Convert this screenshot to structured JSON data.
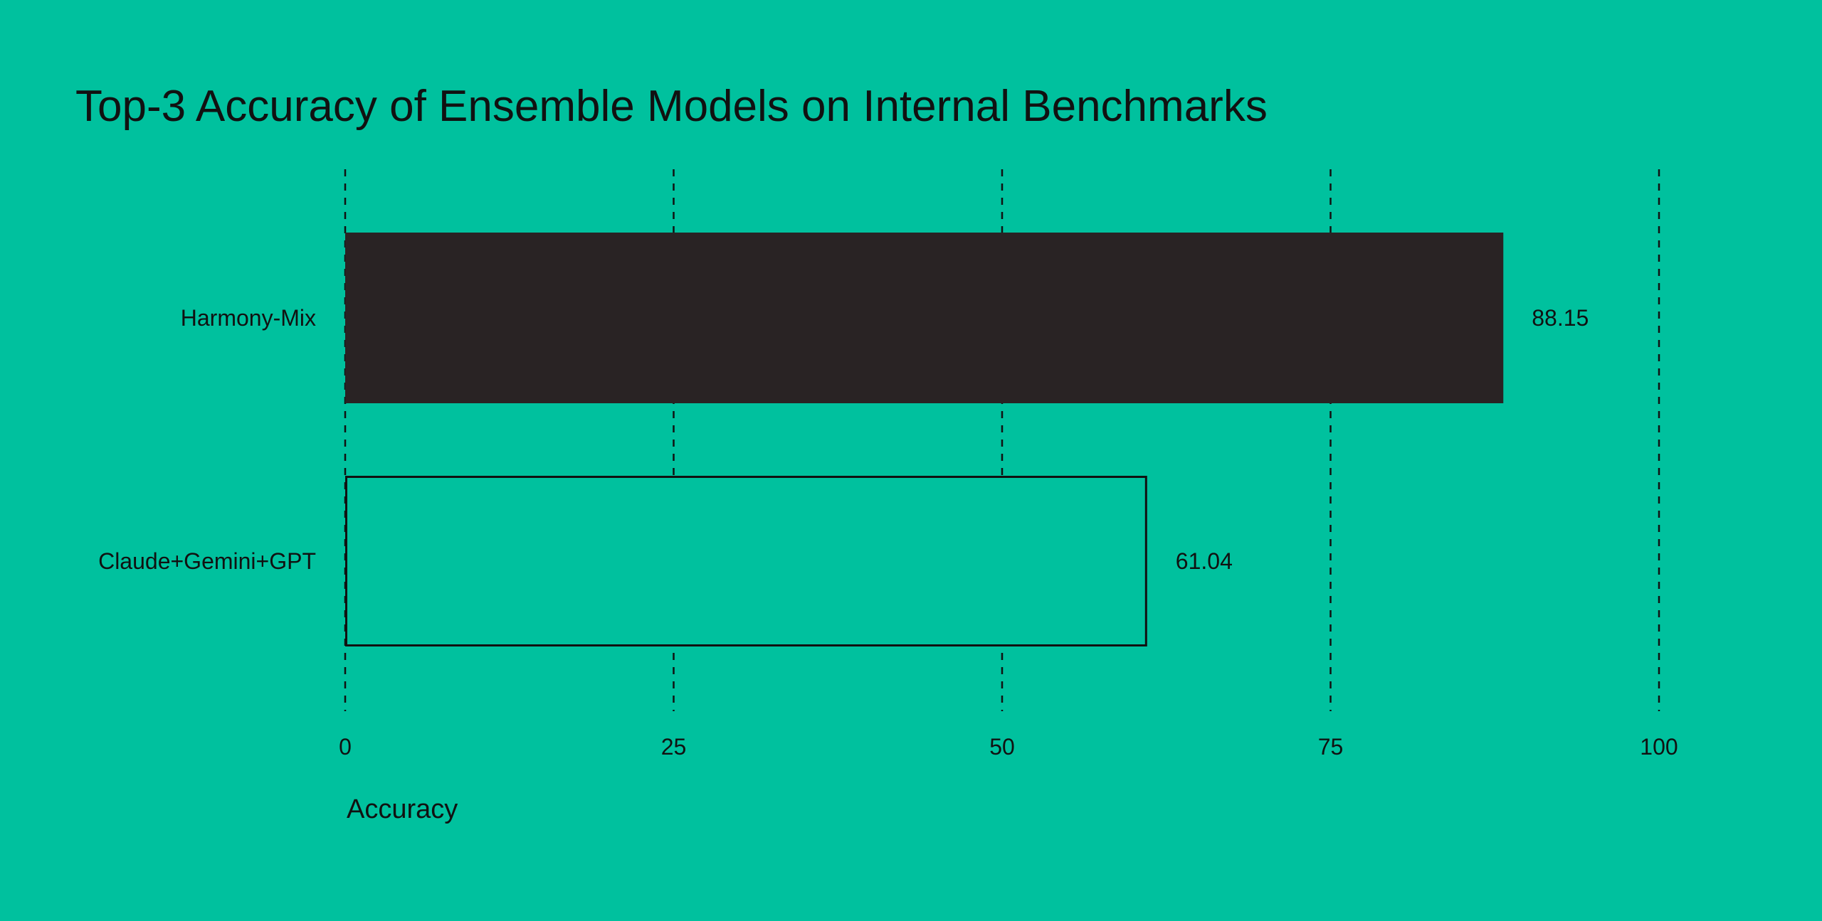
{
  "chart_data": {
    "type": "bar",
    "orientation": "horizontal",
    "title": "Top-3 Accuracy of Ensemble Models on Internal Benchmarks",
    "xlabel": "Accuracy",
    "ylabel": "",
    "categories": [
      "Harmony-Mix",
      "Claude+Gemini+GPT"
    ],
    "values": [
      88.15,
      61.04
    ],
    "value_labels": [
      "88.15",
      "61.04"
    ],
    "bar_styles": [
      "filled",
      "outline"
    ],
    "xlim": [
      0,
      100
    ],
    "xticks": [
      0,
      25,
      50,
      75,
      100
    ],
    "xtick_labels": [
      "0",
      "25",
      "50",
      "75",
      "100"
    ],
    "grid": "vertical dashed",
    "legend": "none"
  },
  "colors": {
    "background": "#00c19e",
    "bar_fill": "#292324",
    "ink": "#111111"
  }
}
